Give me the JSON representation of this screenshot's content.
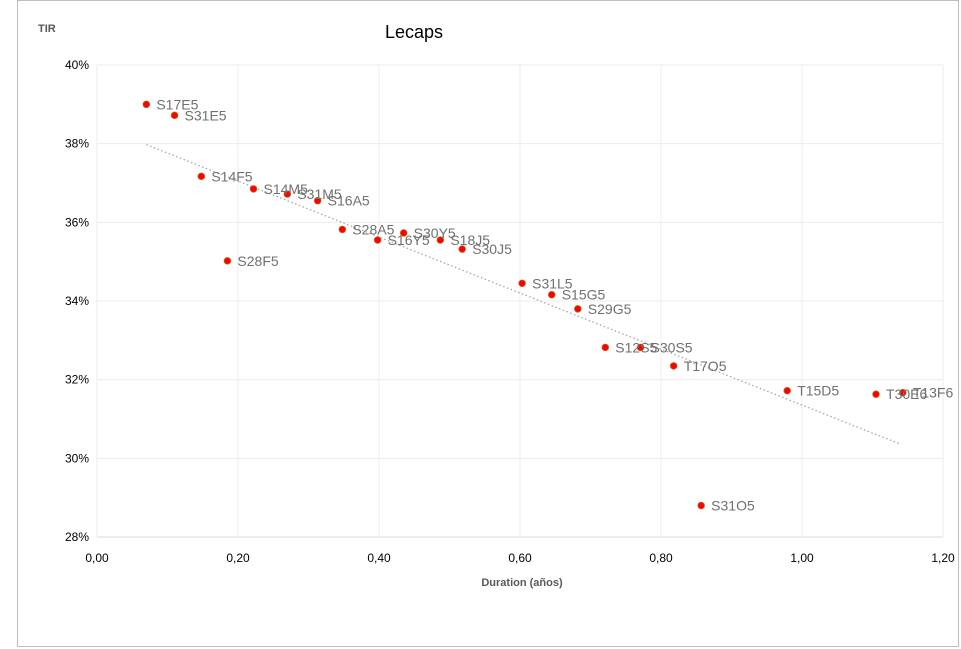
{
  "chart_data": {
    "type": "scatter",
    "title": "Lecaps",
    "xlabel": "Duration (años)",
    "ylabel": "TIR",
    "xlim": [
      0,
      1.2
    ],
    "ylim": [
      0.28,
      0.4
    ],
    "x_ticks": [
      "0,00",
      "0,20",
      "0,40",
      "0,60",
      "0,80",
      "1,00",
      "1,20"
    ],
    "y_ticks": [
      "28%",
      "30%",
      "32%",
      "34%",
      "36%",
      "38%",
      "40%"
    ],
    "grid": true,
    "trendline": {
      "type": "linear",
      "style": "dotted",
      "x_range": [
        0.07,
        1.14
      ]
    },
    "marker_color": "#ff0000",
    "marker_edge": "#c55a11",
    "trend_color": "#a6a6a6",
    "points": [
      {
        "label": "S17E5",
        "x": 0.07,
        "y": 0.39
      },
      {
        "label": "S31E5",
        "x": 0.11,
        "y": 0.3872
      },
      {
        "label": "S14F5",
        "x": 0.148,
        "y": 0.3717
      },
      {
        "label": "S28F5",
        "x": 0.185,
        "y": 0.3502
      },
      {
        "label": "S14M5",
        "x": 0.222,
        "y": 0.3685
      },
      {
        "label": "S31M5",
        "x": 0.27,
        "y": 0.3672
      },
      {
        "label": "S16A5",
        "x": 0.313,
        "y": 0.3655
      },
      {
        "label": "S28A5",
        "x": 0.348,
        "y": 0.3582
      },
      {
        "label": "S16Y5",
        "x": 0.398,
        "y": 0.3555
      },
      {
        "label": "S30Y5",
        "x": 0.435,
        "y": 0.3573
      },
      {
        "label": "S18J5",
        "x": 0.487,
        "y": 0.3555
      },
      {
        "label": "S30J5",
        "x": 0.518,
        "y": 0.3532
      },
      {
        "label": "S31L5",
        "x": 0.603,
        "y": 0.3445
      },
      {
        "label": "S15G5",
        "x": 0.645,
        "y": 0.3416
      },
      {
        "label": "S29G5",
        "x": 0.682,
        "y": 0.338
      },
      {
        "label": "S12S5",
        "x": 0.721,
        "y": 0.3282
      },
      {
        "label": "S30S5",
        "x": 0.771,
        "y": 0.3282
      },
      {
        "label": "T17O5",
        "x": 0.818,
        "y": 0.3235
      },
      {
        "label": "S31O5",
        "x": 0.857,
        "y": 0.288
      },
      {
        "label": "T15D5",
        "x": 0.979,
        "y": 0.3172
      },
      {
        "label": "T30E6",
        "x": 1.105,
        "y": 0.3163
      },
      {
        "label": "T13F6",
        "x": 1.143,
        "y": 0.3167
      }
    ]
  }
}
